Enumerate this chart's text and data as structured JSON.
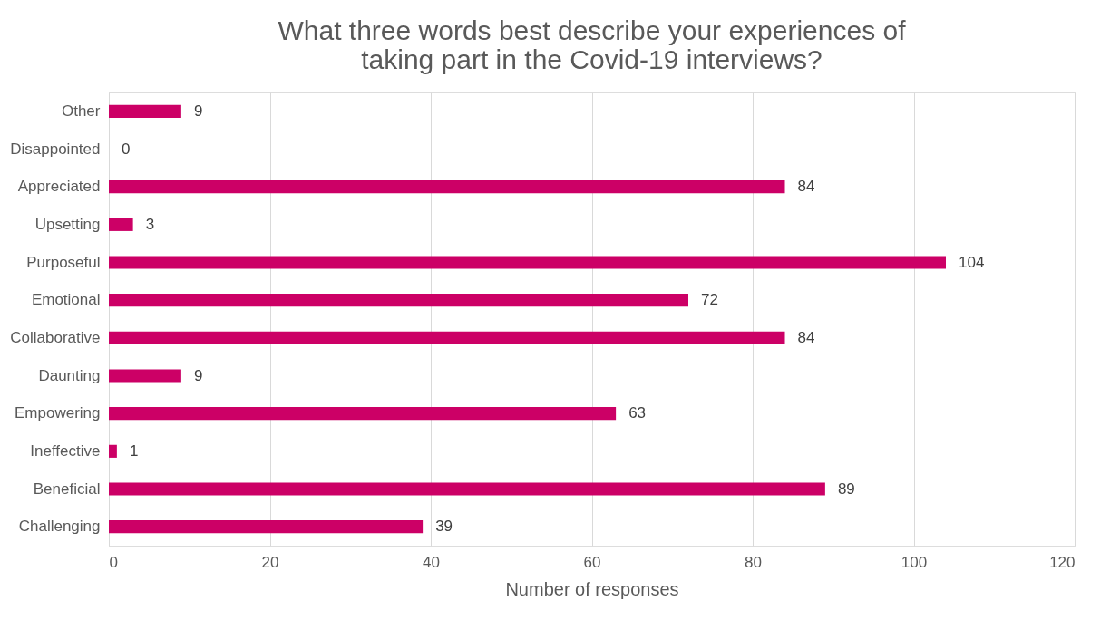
{
  "chart_data": {
    "type": "bar",
    "orientation": "horizontal",
    "title": "What three words best describe your experiences of taking part in the Covid-19 interviews?",
    "xlabel": "Number of responses",
    "categories": [
      "Other",
      "Disappointed",
      "Appreciated",
      "Upsetting",
      "Purposeful",
      "Emotional",
      "Collaborative",
      "Daunting",
      "Empowering",
      "Ineffective",
      "Beneficial",
      "Challenging"
    ],
    "values": [
      9,
      0,
      84,
      3,
      104,
      72,
      84,
      9,
      63,
      1,
      89,
      39
    ],
    "color": "#cc0066",
    "xlim": [
      0,
      120
    ],
    "xticks": [
      0,
      20,
      40,
      60,
      80,
      100,
      120
    ],
    "grid": "x",
    "data_labels": true
  }
}
